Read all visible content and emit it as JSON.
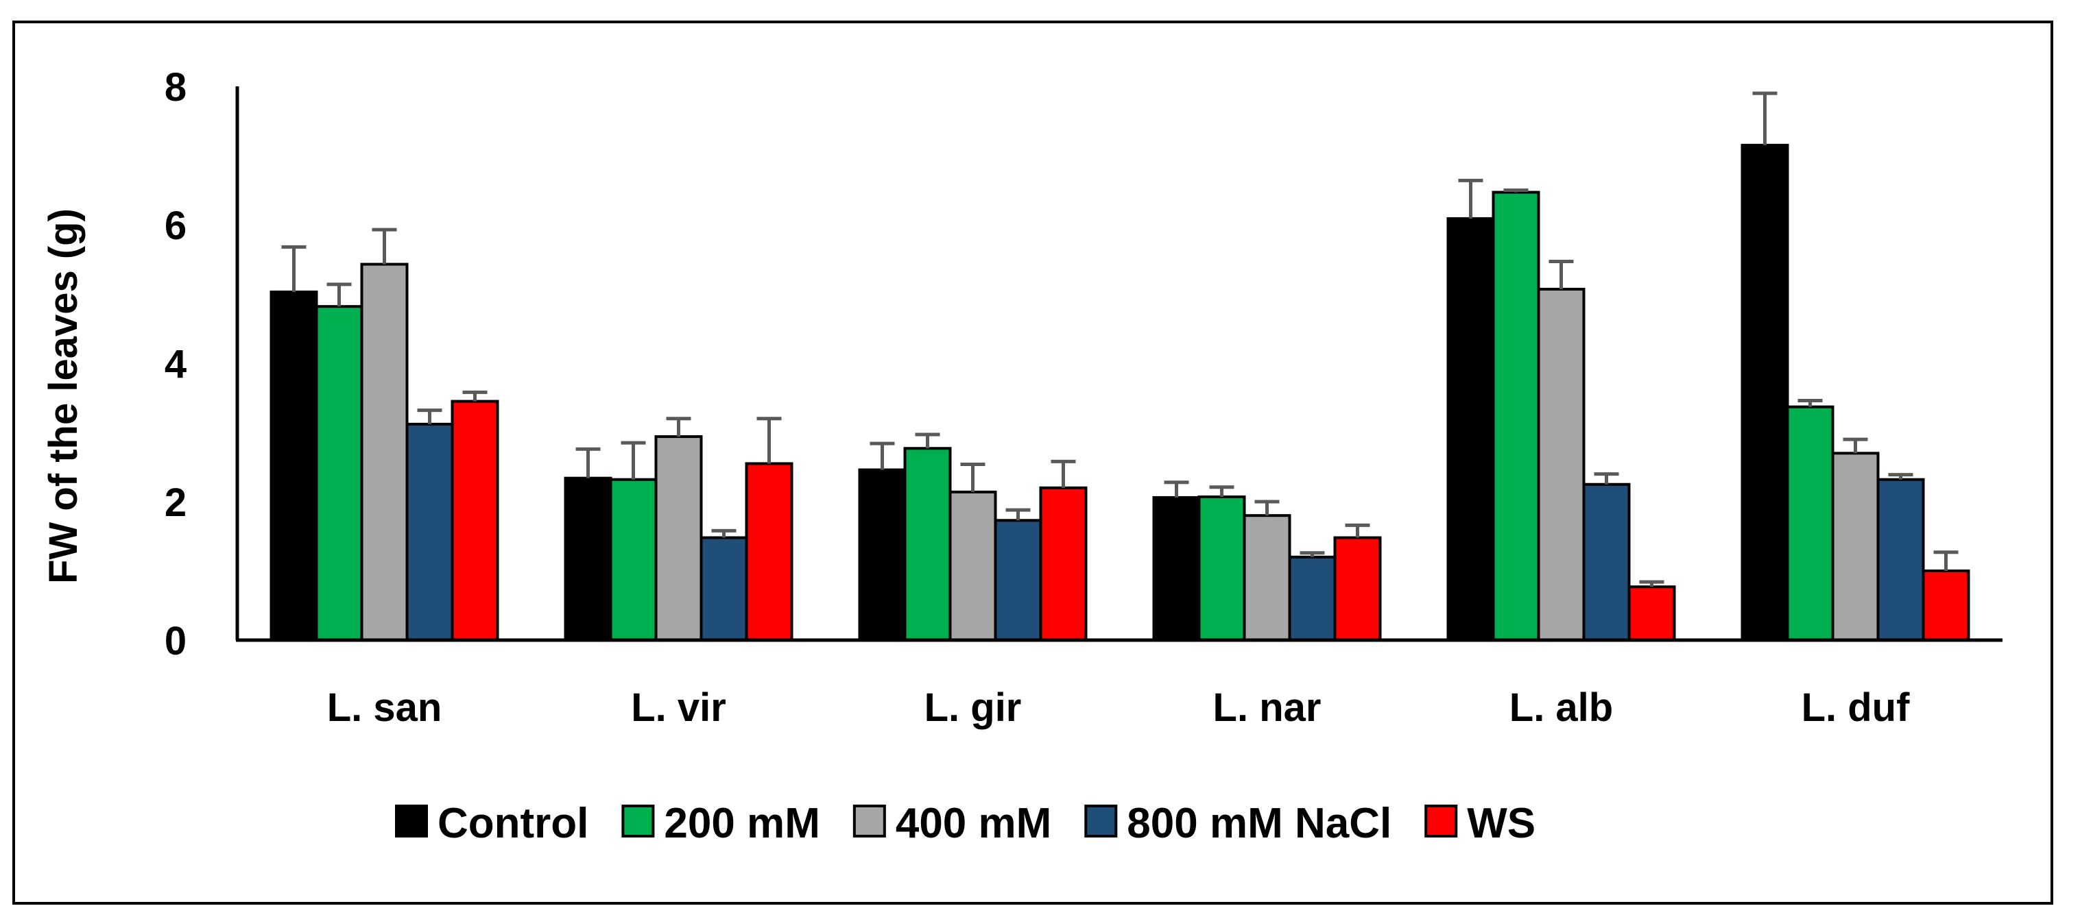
{
  "chart_data": {
    "type": "bar",
    "title": "",
    "xlabel": "",
    "ylabel": "FW of the leaves (g)",
    "ylim": [
      0,
      8
    ],
    "yticks": [
      0,
      2,
      4,
      6,
      8
    ],
    "grid": false,
    "legend_position": "bottom",
    "categories": [
      "L. san",
      "L. vir",
      "L. gir",
      "L. nar",
      "L. alb",
      "L. duf"
    ],
    "series": [
      {
        "name": "Control",
        "color": "#000000",
        "values": [
          5.03,
          2.34,
          2.46,
          2.06,
          6.09,
          7.15
        ],
        "errors": [
          0.65,
          0.42,
          0.38,
          0.22,
          0.55,
          0.75
        ]
      },
      {
        "name": "200 mM",
        "color": "#00b050",
        "values": [
          4.82,
          2.32,
          2.77,
          2.07,
          6.47,
          3.37
        ],
        "errors": [
          0.32,
          0.53,
          0.2,
          0.14,
          0.03,
          0.09
        ]
      },
      {
        "name": "400 mM",
        "color": "#a6a6a6",
        "values": [
          5.43,
          2.94,
          2.14,
          1.8,
          5.07,
          2.7
        ],
        "errors": [
          0.5,
          0.26,
          0.4,
          0.2,
          0.4,
          0.2
        ]
      },
      {
        "name": "800 mM NaCl",
        "color": "#1f4e79",
        "values": [
          3.12,
          1.48,
          1.73,
          1.2,
          2.25,
          2.32
        ],
        "errors": [
          0.2,
          0.1,
          0.15,
          0.06,
          0.15,
          0.07
        ]
      },
      {
        "name": "WS",
        "color": "#ff0000",
        "values": [
          3.45,
          2.55,
          2.2,
          1.48,
          0.77,
          1.0
        ],
        "errors": [
          0.13,
          0.65,
          0.38,
          0.18,
          0.07,
          0.27
        ]
      }
    ]
  }
}
